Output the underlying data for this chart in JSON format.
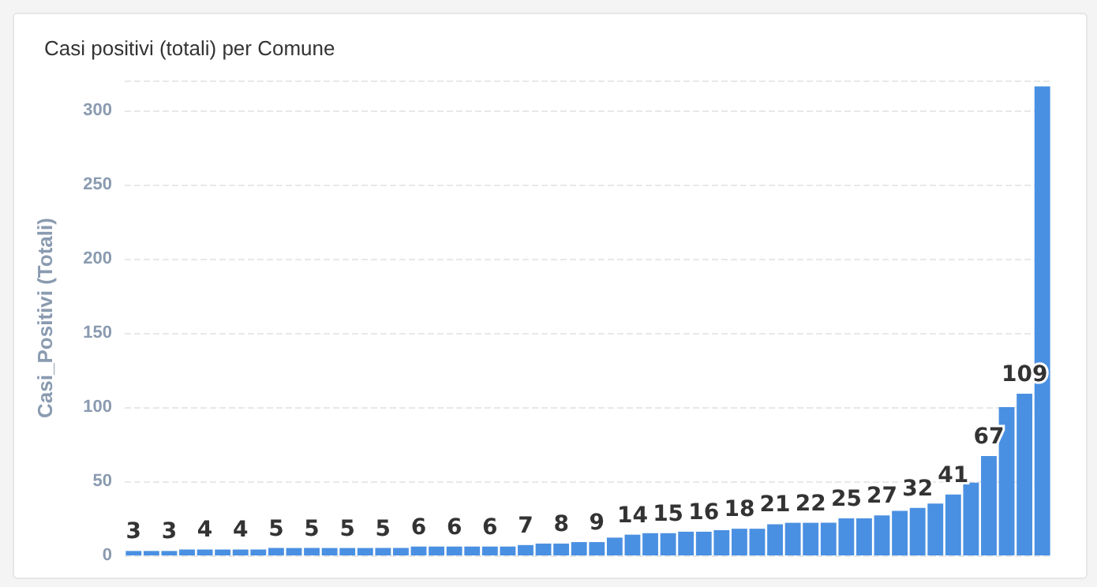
{
  "chart_data": {
    "type": "bar",
    "title": "Casi positivi (totali) per Comune",
    "ylabel": "Casi_Positivi (Totali)",
    "categories": [
      null,
      null,
      null,
      null,
      null,
      null,
      null,
      null,
      null,
      null,
      null,
      null,
      null,
      null,
      null,
      null,
      null,
      null,
      null,
      null,
      null,
      null,
      null,
      null,
      null,
      null,
      null,
      null,
      null,
      null,
      null,
      null,
      null,
      null,
      null,
      null,
      null,
      null,
      null,
      null,
      null,
      null,
      null,
      null,
      null,
      null,
      null,
      null,
      null,
      null,
      null,
      null
    ],
    "values": [
      3,
      3,
      3,
      4,
      4,
      4,
      4,
      4,
      5,
      5,
      5,
      5,
      5,
      5,
      5,
      5,
      6,
      6,
      6,
      6,
      6,
      6,
      7,
      8,
      8,
      9,
      9,
      12,
      14,
      15,
      15,
      16,
      16,
      17,
      18,
      18,
      21,
      22,
      22,
      22,
      25,
      25,
      27,
      30,
      32,
      35,
      41,
      49,
      67,
      100,
      109,
      316
    ],
    "value_labels": [
      "3",
      null,
      "3",
      null,
      "4",
      null,
      "4",
      null,
      "5",
      null,
      "5",
      null,
      "5",
      null,
      "5",
      null,
      "6",
      null,
      "6",
      null,
      "6",
      null,
      "7",
      null,
      "8",
      null,
      "9",
      null,
      "14",
      null,
      "15",
      null,
      "16",
      null,
      "18",
      null,
      "21",
      null,
      "22",
      null,
      "25",
      null,
      "27",
      null,
      "32",
      null,
      "41",
      null,
      "67",
      null,
      "109",
      null
    ],
    "color": "#4a90e2",
    "ylim": [
      0,
      320
    ],
    "yticks": [
      0,
      50,
      100,
      150,
      200,
      250,
      300
    ],
    "grid": "y",
    "tick_labels": "y"
  }
}
